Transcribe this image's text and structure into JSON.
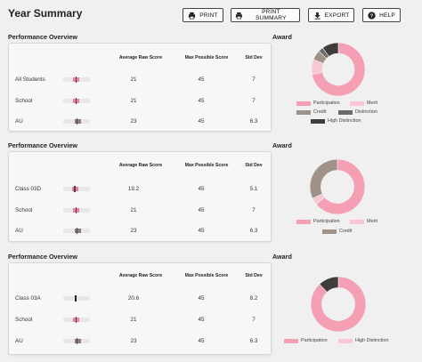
{
  "page": {
    "title": "Year Summary"
  },
  "toolbar": {
    "print": "PRINT",
    "print_summary": "PRINT SUMMARY",
    "export": "EXPORT",
    "help": "HELP"
  },
  "columns": [
    "Average Raw Score",
    "Max Possible Score",
    "Std Dev"
  ],
  "colors": {
    "participation": "#f49fb3",
    "merit": "#f8c7d3",
    "credit": "#a09288",
    "distinction": "#6e6a68",
    "high_distinction": "#3f3c3b",
    "bar_pink": "#e9819e",
    "bar_grey": "#8d7e79"
  },
  "sections": [
    {
      "title": "Performance Overview",
      "award_title": "Award",
      "rows": [
        {
          "label": "All Students",
          "avg": "21",
          "max": "45",
          "sd": "7",
          "bar": 0.48,
          "bar_color": "pink"
        },
        {
          "label": "School",
          "avg": "21",
          "max": "45",
          "sd": "7",
          "bar": 0.48,
          "bar_color": "pink"
        },
        {
          "label": "AU",
          "avg": "23",
          "max": "45",
          "sd": "6.3",
          "bar": 0.52,
          "bar_color": "grey"
        }
      ],
      "award": {
        "slices": [
          {
            "key": "participation",
            "value": 0.72
          },
          {
            "key": "merit",
            "value": 0.09
          },
          {
            "key": "credit",
            "value": 0.06
          },
          {
            "key": "distinction",
            "value": 0.03
          },
          {
            "key": "high_distinction",
            "value": 0.1
          }
        ],
        "legend": [
          "Participation",
          "Merit",
          "Credit",
          "Distinction",
          "High Distinction"
        ]
      }
    },
    {
      "title": "Performance Overview",
      "award_title": "Award",
      "rows": [
        {
          "label": "Class 03D",
          "avg": "19.2",
          "max": "45",
          "sd": "5.1",
          "bar": 0.43,
          "bar_color": "pink"
        },
        {
          "label": "School",
          "avg": "21",
          "max": "45",
          "sd": "7",
          "bar": 0.48,
          "bar_color": "pink"
        },
        {
          "label": "AU",
          "avg": "23",
          "max": "45",
          "sd": "6.3",
          "bar": 0.52,
          "bar_color": "grey"
        }
      ],
      "award": {
        "slices": [
          {
            "key": "participation",
            "value": 0.64
          },
          {
            "key": "merit",
            "value": 0.04
          },
          {
            "key": "credit",
            "value": 0.32
          }
        ],
        "legend": [
          "Participation",
          "Merit",
          "Credit"
        ]
      }
    },
    {
      "title": "Performance Overview",
      "award_title": "Award",
      "rows": [
        {
          "label": "Class 03A",
          "avg": "20.6",
          "max": "45",
          "sd": "8.2",
          "bar": 0.46,
          "bar_color": "dark"
        },
        {
          "label": "School",
          "avg": "21",
          "max": "45",
          "sd": "7",
          "bar": 0.48,
          "bar_color": "pink"
        },
        {
          "label": "AU",
          "avg": "23",
          "max": "45",
          "sd": "6.3",
          "bar": 0.52,
          "bar_color": "grey"
        }
      ],
      "award": {
        "slices": [
          {
            "key": "participation",
            "value": 0.88
          },
          {
            "key": "high_distinction",
            "value": 0.12
          }
        ],
        "legend": [
          "Participation",
          "High Distinction"
        ]
      }
    }
  ]
}
